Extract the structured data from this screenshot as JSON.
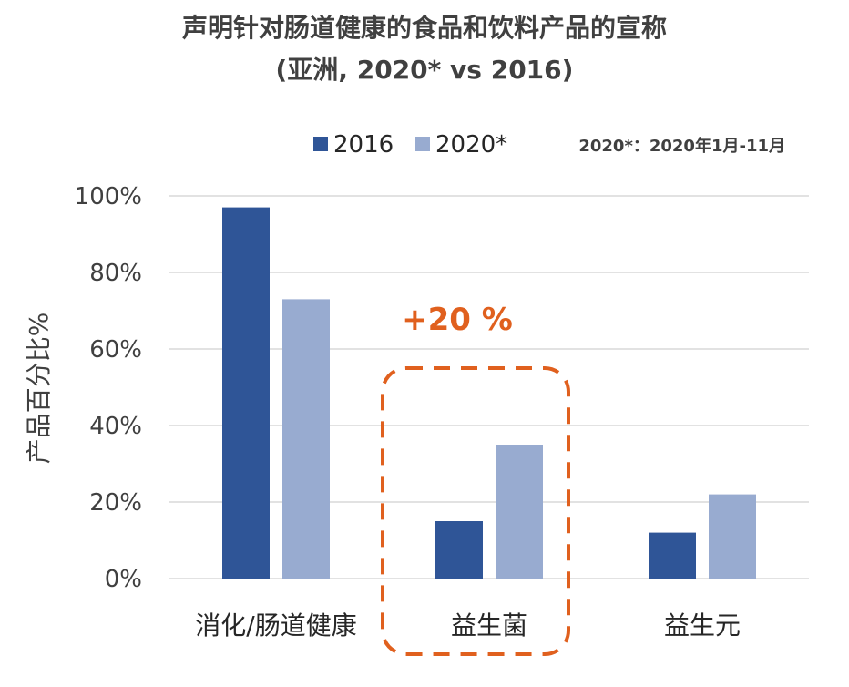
{
  "chart_data": {
    "type": "bar",
    "title": "声明针对肠道健康的食品和饮料产品的宣称",
    "subtitle": "(亚洲, 2020* vs 2016)",
    "ylabel": "产品百分比%",
    "xlabel": "",
    "ylim": [
      0,
      100
    ],
    "yticks": [
      "0%",
      "20%",
      "40%",
      "60%",
      "80%",
      "100%"
    ],
    "categories": [
      "消化/肠道健康",
      "益生菌",
      "益生元"
    ],
    "series": [
      {
        "name": "2016",
        "values": [
          97,
          15,
          12
        ],
        "color": "#2f5597"
      },
      {
        "name": "2020*",
        "values": [
          73,
          35,
          22
        ],
        "color": "#98abd0"
      }
    ],
    "legend_position": "top-right",
    "note": "2020*：2020年1月-11月",
    "callout": {
      "text": "+20 %",
      "category": "益生菌",
      "color": "#e0601e"
    },
    "grid": true
  }
}
